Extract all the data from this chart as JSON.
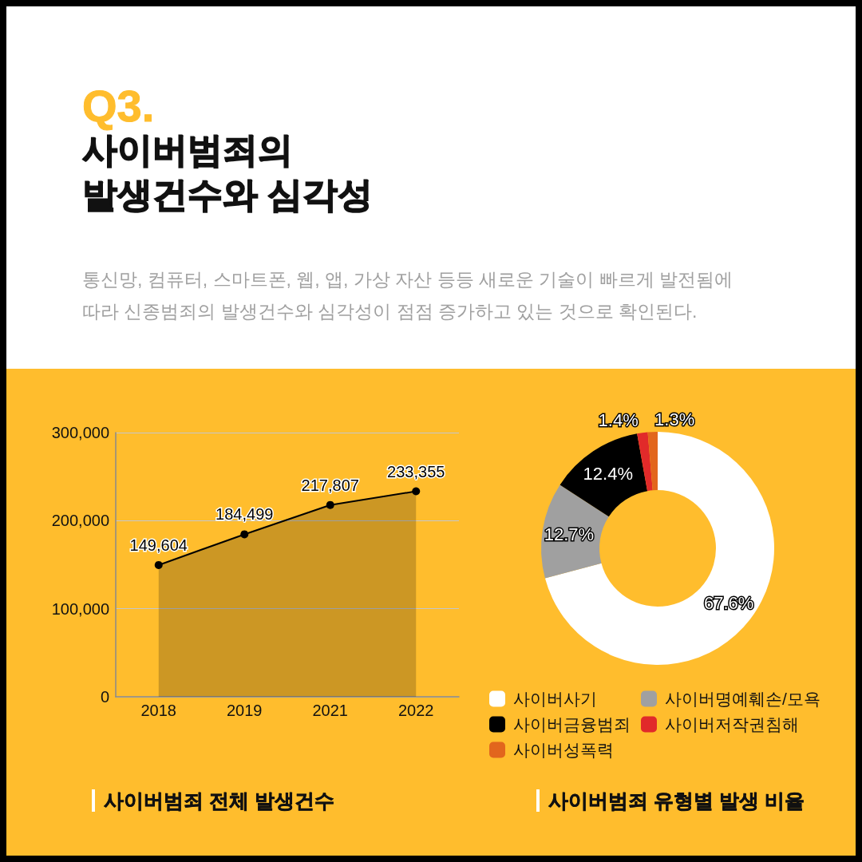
{
  "chart_data": [
    {
      "type": "other",
      "title": "사이버범죄의 발생건수와 심각성",
      "subtitle": "통신망, 컴퓨터, 스마트폰, 웹, 앱, 가상 자산 등등 새로운 기술이 빠르게 발전됨에 따라 신종범죄의 발생건수와 심각성이 점점 증가하고 있는 것으로 확인된다.",
      "annotations": [
        "Q3."
      ]
    },
    {
      "type": "area",
      "title": "사이버범죄 전체 발생건수",
      "categories": [
        "2018",
        "2019",
        "2021",
        "2022"
      ],
      "values": [
        149604,
        184499,
        217807,
        233355
      ],
      "color": "#000000",
      "value_labels": [
        "149,604",
        "184,499",
        "217,807",
        "233,355"
      ],
      "ylim": [
        0,
        300000
      ],
      "yticks": [
        0,
        {
          "value": 100000,
          "label": "100,000"
        },
        {
          "value": 200000,
          "label": "200,000"
        },
        {
          "value": 300000,
          "label": "300,000"
        }
      ],
      "grid": "y",
      "marker": "circle",
      "line_style": "solid"
    },
    {
      "type": "donut",
      "title": "사이버범죄 유형별 발생 비율",
      "categories": [
        "사이버사기",
        "사이버명예훼손/모욕",
        "사이버금융범죄",
        "사이버저작권침해",
        "사이버성폭력"
      ],
      "values": [
        67.6,
        12.7,
        12.4,
        1.4,
        1.3
      ],
      "colors": [
        "#ffffff",
        "#a0a0a0",
        "#000000",
        "#e12a2a",
        "#e2661d"
      ],
      "value_labels": [
        "67.6%",
        "12.7%",
        "12.4%",
        "1.4%",
        "1.3%"
      ],
      "legend": "bottom"
    }
  ]
}
